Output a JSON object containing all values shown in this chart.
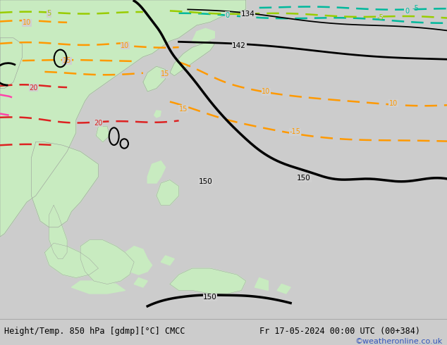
{
  "title_left": "Height/Temp. 850 hPa [gdmp][°C] CMCC",
  "title_right": "Fr 17-05-2024 00:00 UTC (00+384)",
  "credit": "©weatheronline.co.uk",
  "bg_color": "#cccccc",
  "land_color_green": "#c8ebc0",
  "land_color_gray": "#bbbbbb",
  "border_color": "#999999",
  "fig_width": 6.34,
  "fig_height": 4.9,
  "dpi": 100,
  "bottom_bar_color": "#eeeeee",
  "map_bg": "#d0d0d0"
}
